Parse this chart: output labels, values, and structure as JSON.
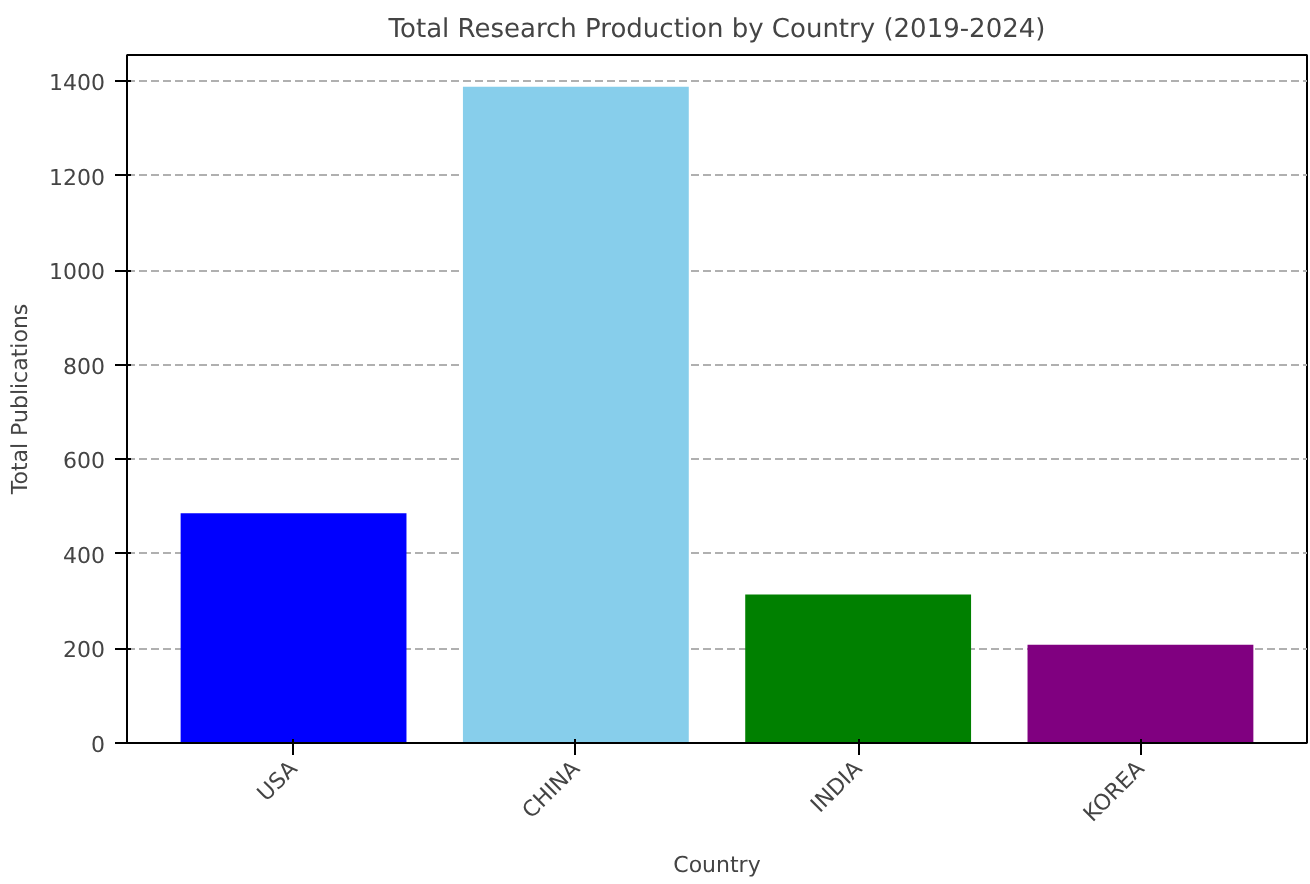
{
  "chart_data": {
    "type": "bar",
    "title": "Total Research Production by Country (2019-2024)",
    "xlabel": "Country",
    "ylabel": "Total Publications",
    "categories": [
      "USA",
      "CHINA",
      "INDIA",
      "KOREA"
    ],
    "values": [
      486,
      1388,
      314,
      208
    ],
    "colors": [
      "#0000ff",
      "#87ceeb",
      "#008000",
      "#800080"
    ],
    "ylim": [
      0,
      1455
    ],
    "yticks": [
      0,
      200,
      400,
      600,
      800,
      1000,
      1200,
      1400
    ],
    "grid": "y"
  }
}
